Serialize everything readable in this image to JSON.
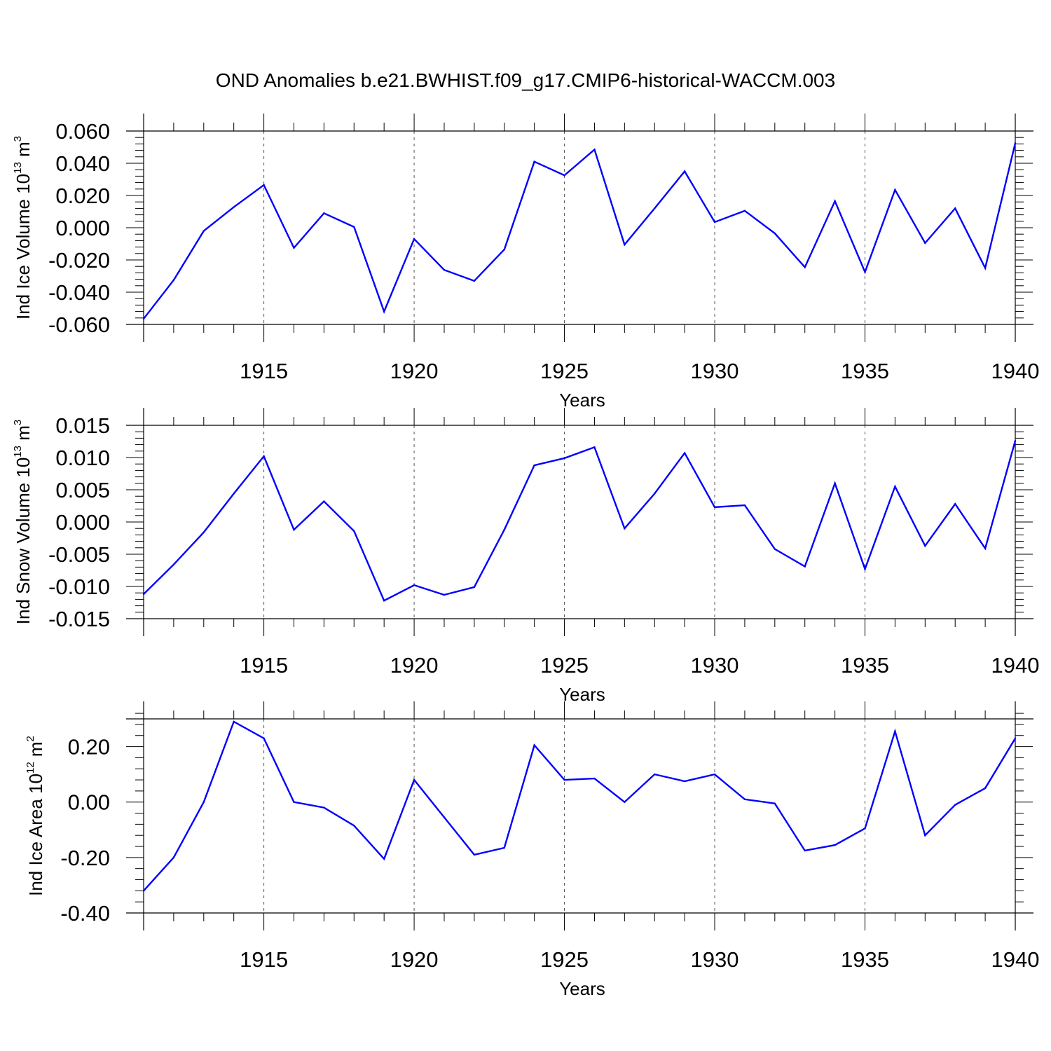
{
  "figure": {
    "title": "OND Anomalies b.e21.BWHIST.f09_g17.CMIP6-historical-WACCM.003",
    "line_color": "#0000ff",
    "grid_color": "#555555"
  },
  "chart_data": [
    {
      "type": "line",
      "ylabel": {
        "base": "Ind Ice Volume 10",
        "exp": "13",
        "unit": " m",
        "unit_exp": "3"
      },
      "xlabel": "Years",
      "xlim": [
        1911,
        1940
      ],
      "ylim": [
        -0.06,
        0.06
      ],
      "yticks": [
        -0.06,
        -0.04,
        -0.02,
        0.0,
        0.02,
        0.04,
        0.06
      ],
      "ytick_labels": [
        "-0.060",
        "-0.040",
        "-0.020",
        "0.000",
        "0.020",
        "0.040",
        "0.060"
      ],
      "yminor_step": 0.004,
      "xticks": [
        1915,
        1920,
        1925,
        1930,
        1935,
        1940
      ],
      "xtick_labels": [
        "1915",
        "1920",
        "1925",
        "1930",
        "1935",
        "1940"
      ],
      "grid": "vertical dashed at major x ticks",
      "series": [
        {
          "name": "Ind Ice Volume",
          "x": [
            1911,
            1912,
            1913,
            1914,
            1915,
            1916,
            1917,
            1918,
            1919,
            1920,
            1921,
            1922,
            1923,
            1924,
            1925,
            1926,
            1927,
            1928,
            1929,
            1930,
            1931,
            1932,
            1933,
            1934,
            1935,
            1936,
            1937,
            1938,
            1939,
            1940
          ],
          "values": [
            -0.0565,
            -0.0325,
            -0.002,
            0.0128,
            0.0265,
            -0.0125,
            0.009,
            0.0005,
            -0.052,
            -0.007,
            -0.0262,
            -0.033,
            -0.0135,
            0.041,
            0.0325,
            0.0485,
            -0.0105,
            0.012,
            0.035,
            0.0035,
            0.0105,
            -0.0035,
            -0.0245,
            0.0165,
            -0.0275,
            0.0235,
            -0.0095,
            0.012,
            -0.025,
            0.0525
          ]
        }
      ]
    },
    {
      "type": "line",
      "ylabel": {
        "base": "Ind Snow Volume 10",
        "exp": "13",
        "unit": " m",
        "unit_exp": "3"
      },
      "xlabel": "Years",
      "xlim": [
        1911,
        1940
      ],
      "ylim": [
        -0.015,
        0.015
      ],
      "yticks": [
        -0.015,
        -0.01,
        -0.005,
        0.0,
        0.005,
        0.01,
        0.015
      ],
      "ytick_labels": [
        "-0.015",
        "-0.010",
        "-0.005",
        "0.000",
        "0.005",
        "0.010",
        "0.015"
      ],
      "yminor_step": 0.001,
      "xticks": [
        1915,
        1920,
        1925,
        1930,
        1935,
        1940
      ],
      "xtick_labels": [
        "1915",
        "1920",
        "1925",
        "1930",
        "1935",
        "1940"
      ],
      "grid": "vertical dashed at major x ticks",
      "series": [
        {
          "name": "Ind Snow Volume",
          "x": [
            1911,
            1912,
            1913,
            1914,
            1915,
            1916,
            1917,
            1918,
            1919,
            1920,
            1921,
            1922,
            1923,
            1924,
            1925,
            1926,
            1927,
            1928,
            1929,
            1930,
            1931,
            1932,
            1933,
            1934,
            1935,
            1936,
            1937,
            1938,
            1939,
            1940
          ],
          "values": [
            -0.0112,
            -0.0066,
            -0.0016,
            0.0044,
            0.0102,
            -0.0012,
            0.0032,
            -0.0014,
            -0.0122,
            -0.0098,
            -0.0113,
            -0.0101,
            -0.0012,
            0.0088,
            0.0099,
            0.0116,
            -0.001,
            0.0044,
            0.0107,
            0.0023,
            0.0026,
            -0.0042,
            -0.0069,
            0.006,
            -0.0073,
            0.0055,
            -0.0037,
            0.0028,
            -0.0041,
            0.0126
          ]
        }
      ]
    },
    {
      "type": "line",
      "ylabel": {
        "base": "Ind Ice Area 10",
        "exp": "12",
        "unit": " m",
        "unit_exp": "2"
      },
      "xlabel": "Years",
      "xlim": [
        1911,
        1940
      ],
      "ylim": [
        -0.4,
        0.3
      ],
      "yticks": [
        -0.4,
        -0.2,
        0.0,
        0.2
      ],
      "ytick_labels": [
        "-0.40",
        "-0.20",
        "0.00",
        "0.20"
      ],
      "yminor_step": 0.04,
      "xticks": [
        1915,
        1920,
        1925,
        1930,
        1935,
        1940
      ],
      "xtick_labels": [
        "1915",
        "1920",
        "1925",
        "1930",
        "1935",
        "1940"
      ],
      "grid": "vertical dashed at major x ticks",
      "series": [
        {
          "name": "Ind Ice Area",
          "x": [
            1911,
            1912,
            1913,
            1914,
            1915,
            1916,
            1917,
            1918,
            1919,
            1920,
            1921,
            1922,
            1923,
            1924,
            1925,
            1926,
            1927,
            1928,
            1929,
            1930,
            1931,
            1932,
            1933,
            1934,
            1935,
            1936,
            1937,
            1938,
            1939,
            1940
          ],
          "values": [
            -0.32,
            -0.2,
            0.0,
            0.29,
            0.23,
            0.0,
            -0.02,
            -0.085,
            -0.205,
            0.08,
            -0.055,
            -0.19,
            -0.165,
            0.205,
            0.08,
            0.085,
            0.0,
            0.1,
            0.075,
            0.1,
            0.01,
            -0.005,
            -0.175,
            -0.155,
            -0.095,
            0.255,
            -0.12,
            -0.01,
            0.05,
            0.23
          ]
        }
      ]
    }
  ]
}
